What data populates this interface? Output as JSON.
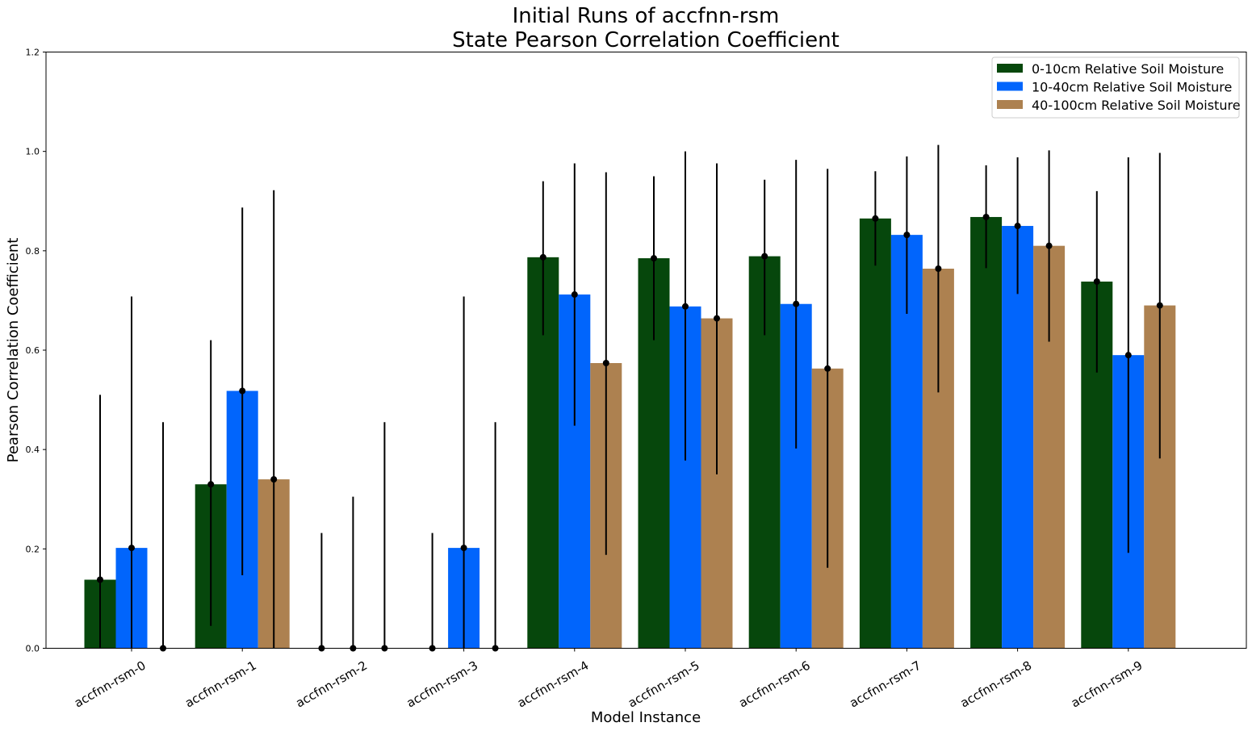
{
  "chart_data": {
    "type": "bar",
    "title": "Initial Runs of accfnn-rsm",
    "subtitle": "State Pearson Correlation Coefficient",
    "xlabel": "Model Instance",
    "ylabel": "Pearson Correlation Coefficient",
    "ylim": [
      0.0,
      1.2
    ],
    "yticks": [
      "0.0",
      "0.2",
      "0.4",
      "0.6",
      "0.8",
      "1.0",
      "1.2"
    ],
    "grid": false,
    "legend_position": "top-right",
    "categories": [
      "accfnn-rsm-0",
      "accfnn-rsm-1",
      "accfnn-rsm-2",
      "accfnn-rsm-3",
      "accfnn-rsm-4",
      "accfnn-rsm-5",
      "accfnn-rsm-6",
      "accfnn-rsm-7",
      "accfnn-rsm-8",
      "accfnn-rsm-9"
    ],
    "series": [
      {
        "name": "0-10cm Relative Soil Moisture",
        "color": "#06470c",
        "values": [
          0.138,
          0.33,
          0.0,
          0.0,
          0.787,
          0.785,
          0.789,
          0.865,
          0.868,
          0.738
        ],
        "error_low": [
          0.0,
          0.045,
          0.0,
          0.0,
          0.63,
          0.62,
          0.63,
          0.77,
          0.765,
          0.555
        ],
        "error_high": [
          0.51,
          0.62,
          0.232,
          0.232,
          0.94,
          0.95,
          0.943,
          0.96,
          0.972,
          0.92
        ]
      },
      {
        "name": "10-40cm Relative Soil Moisture",
        "color": "#0165fc",
        "values": [
          0.202,
          0.518,
          0.0,
          0.202,
          0.712,
          0.688,
          0.693,
          0.832,
          0.85,
          0.59
        ],
        "error_low": [
          0.0,
          0.147,
          0.0,
          0.0,
          0.448,
          0.378,
          0.402,
          0.673,
          0.713,
          0.192
        ],
        "error_high": [
          0.708,
          0.887,
          0.305,
          0.708,
          0.976,
          1.0,
          0.983,
          0.99,
          0.988,
          0.988
        ]
      },
      {
        "name": "40-100cm Relative Soil Moisture",
        "color": "#ad8150",
        "values": [
          0.0,
          0.34,
          0.0,
          0.0,
          0.574,
          0.664,
          0.563,
          0.764,
          0.81,
          0.69
        ],
        "error_low": [
          0.0,
          0.0,
          0.0,
          0.0,
          0.188,
          0.35,
          0.162,
          0.515,
          0.617,
          0.382
        ],
        "error_high": [
          0.455,
          0.922,
          0.455,
          0.455,
          0.958,
          0.976,
          0.965,
          1.013,
          1.002,
          0.997
        ]
      }
    ]
  }
}
